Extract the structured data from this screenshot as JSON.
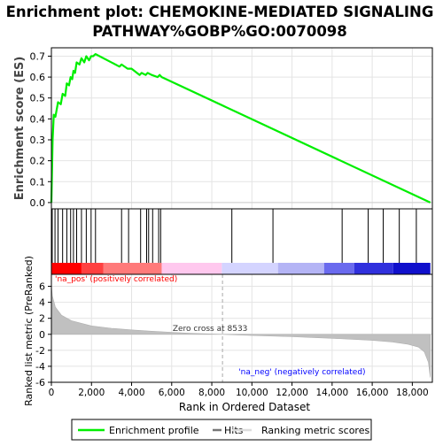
{
  "chart_data": {
    "type": "line",
    "title": "Enrichment plot: CHEMOKINE-MEDIATED SIGNALING PATHWAY%GOBP%GO:0070098",
    "title_lines": [
      "Enrichment plot: CHEMOKINE-MEDIATED SIGNALING",
      "PATHWAY%GOBP%GO:0070098"
    ],
    "xlabel": "Rank in Ordered Dataset",
    "top_ylabel": "Enrichment score (ES)",
    "bottom_ylabel": "Ranked list metric (PreRanked)",
    "xlim": [
      0,
      19000
    ],
    "x_ticks": [
      0,
      2000,
      4000,
      6000,
      8000,
      10000,
      12000,
      14000,
      16000,
      18000
    ],
    "x_tick_labels": [
      "0",
      "2,000",
      "4,000",
      "6,000",
      "8,000",
      "10,000",
      "12,000",
      "14,000",
      "16,000",
      "18,000"
    ],
    "es_ylim": [
      -0.03,
      0.74
    ],
    "es_ticks": [
      0.0,
      0.1,
      0.2,
      0.3,
      0.4,
      0.5,
      0.6,
      0.7
    ],
    "es_tick_labels": [
      "0.0",
      "0.1",
      "0.2",
      "0.3",
      "0.4",
      "0.5",
      "0.6",
      "0.7"
    ],
    "metric_ylim": [
      -6,
      7.5
    ],
    "metric_ticks": [
      -6,
      -4,
      -2,
      0,
      2,
      4,
      6
    ],
    "metric_tick_labels": [
      "-6",
      "-4",
      "-2",
      "0",
      "2",
      "4",
      "6"
    ],
    "grid": true,
    "enrichment_profile": {
      "x": [
        0,
        60,
        120,
        200,
        330,
        470,
        560,
        690,
        770,
        880,
        960,
        1040,
        1100,
        1180,
        1260,
        1400,
        1500,
        1640,
        1740,
        1880,
        1980,
        2080,
        2200,
        3400,
        3500,
        3800,
        4000,
        4400,
        4500,
        4700,
        4800,
        5000,
        5300,
        5400,
        5500,
        18900
      ],
      "y": [
        0.0,
        0.3,
        0.42,
        0.41,
        0.48,
        0.47,
        0.52,
        0.51,
        0.57,
        0.56,
        0.6,
        0.59,
        0.63,
        0.62,
        0.67,
        0.66,
        0.69,
        0.67,
        0.7,
        0.68,
        0.7,
        0.7,
        0.71,
        0.65,
        0.66,
        0.64,
        0.64,
        0.61,
        0.62,
        0.61,
        0.62,
        0.61,
        0.6,
        0.61,
        0.6,
        0.0
      ]
    },
    "hits": [
      40,
      180,
      330,
      560,
      770,
      960,
      1100,
      1260,
      1500,
      1740,
      1980,
      2200,
      3500,
      3850,
      4450,
      4750,
      4850,
      5050,
      5350,
      5450,
      9000,
      11050,
      14500,
      15800,
      16550,
      17350,
      18200
    ],
    "metric_profile": {
      "x": [
        0,
        50,
        200,
        500,
        1000,
        2000,
        3000,
        4000,
        5000,
        6000,
        7000,
        8533,
        10000,
        12000,
        14000,
        16000,
        17000,
        17800,
        18300,
        18600,
        18800,
        18900
      ],
      "y": [
        6.2,
        4.8,
        3.4,
        2.4,
        1.7,
        1.05,
        0.75,
        0.55,
        0.38,
        0.25,
        0.12,
        0.0,
        -0.15,
        -0.3,
        -0.5,
        -0.75,
        -0.95,
        -1.25,
        -1.6,
        -2.2,
        -3.5,
        -5.4
      ]
    },
    "zero_cross_rank": 8533,
    "annotations": {
      "zero_cross": "Zero cross at 8533",
      "pos_label": "'na_pos' (positively correlated)",
      "neg_label": "'na_neg' (negatively correlated)"
    },
    "legend": {
      "placement": "bottom",
      "items": [
        "Enrichment profile",
        "Hits",
        "Ranking metric scores"
      ]
    },
    "colors": {
      "profile": "#00ee00",
      "hits": "#000000",
      "metric": "#c0c0c0",
      "zero_line": "#aaaaaa",
      "pos_text": "#ff0000",
      "neg_text": "#0000ff",
      "band": [
        "#ff0000",
        "#ff4040",
        "#ff7a7a",
        "#ffc8ee",
        "#d4d4ff",
        "#b4b4f5",
        "#6a6aee",
        "#3030dd",
        "#1010cc"
      ]
    },
    "band_segments": {
      "edges": [
        0,
        1500,
        2600,
        5500,
        8500,
        11300,
        13600,
        15100,
        17050,
        18900
      ],
      "colors": [
        "#ff0000",
        "#ff4040",
        "#ff7a7a",
        "#ffc8ee",
        "#d4d4ff",
        "#b4b4f5",
        "#6a6aee",
        "#3030dd",
        "#1010cc"
      ]
    }
  }
}
